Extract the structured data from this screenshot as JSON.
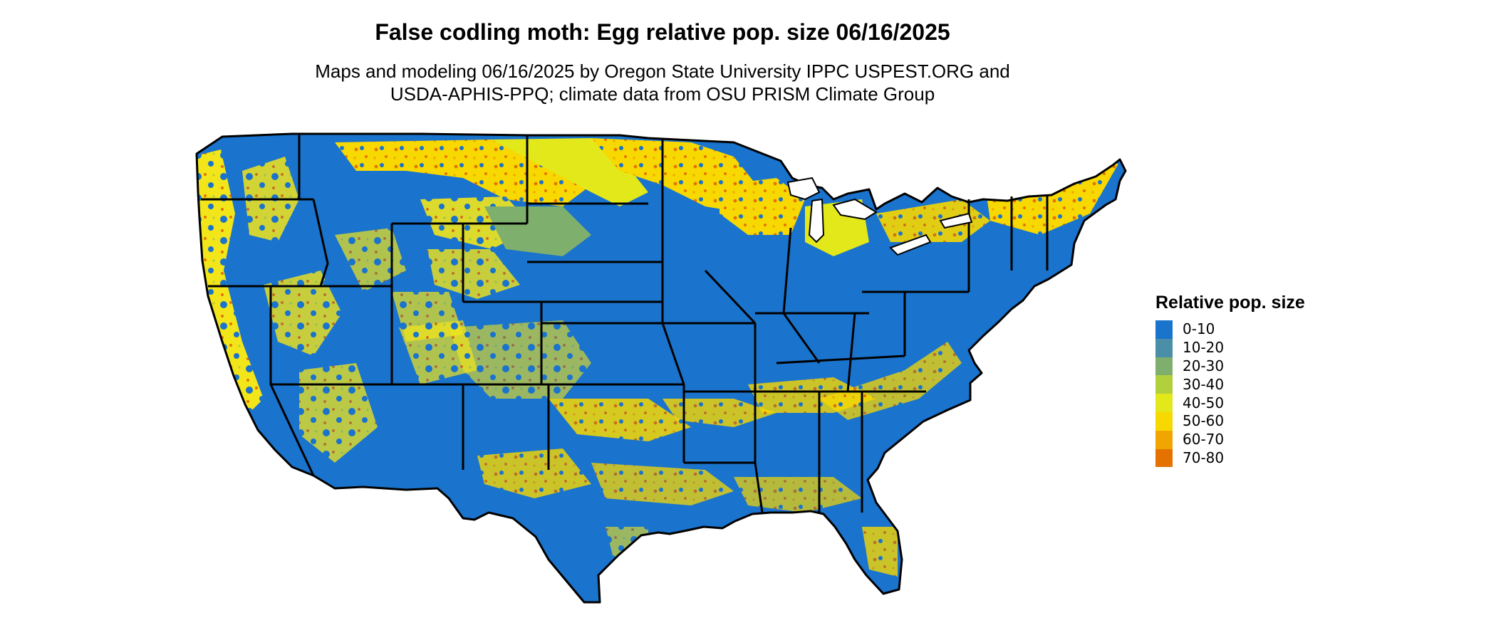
{
  "map": {
    "title": "False codling moth: Egg relative pop. size 06/16/2025",
    "subtitle_line1": "Maps and modeling 06/16/2025 by Oregon State University IPPC USPEST.ORG and",
    "subtitle_line2": "USDA-APHIS-PPQ; climate data from OSU PRISM Climate Group"
  },
  "legend": {
    "title": "Relative pop. size",
    "items": [
      {
        "label": "0-10",
        "color": "#1a73cc"
      },
      {
        "label": "10-20",
        "color": "#4a8ea8"
      },
      {
        "label": "20-30",
        "color": "#7faf6c"
      },
      {
        "label": "30-40",
        "color": "#b2cf3c"
      },
      {
        "label": "40-50",
        "color": "#e3e81a"
      },
      {
        "label": "50-60",
        "color": "#f7d800"
      },
      {
        "label": "60-70",
        "color": "#f0a500"
      },
      {
        "label": "70-80",
        "color": "#e57200"
      }
    ]
  }
}
